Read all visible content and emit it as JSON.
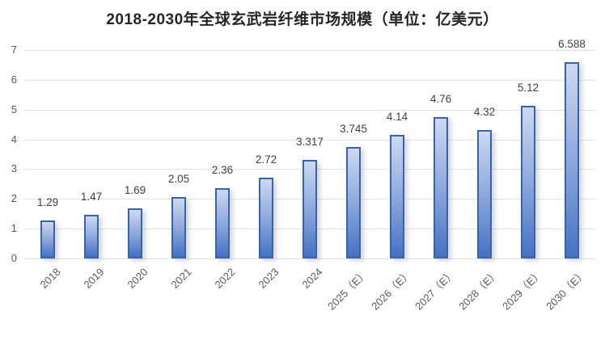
{
  "chart_data": {
    "type": "bar",
    "title": "2018-2030年全球玄武岩纤维市场规模（单位：亿美元）",
    "categories": [
      "2018",
      "2019",
      "2020",
      "2021",
      "2022",
      "2023",
      "2024",
      "2025（E）",
      "2026（E）",
      "2027（E）",
      "2028（E）",
      "2029（E）",
      "2030（E）"
    ],
    "values": [
      1.29,
      1.47,
      1.69,
      2.05,
      2.36,
      2.72,
      3.317,
      3.745,
      4.14,
      4.76,
      4.32,
      5.12,
      6.588
    ],
    "data_labels": [
      "1.29",
      "1.47",
      "1.69",
      "2.05",
      "2.36",
      "2.72",
      "3.317",
      "3.745",
      "4.14",
      "4.76",
      "4.32",
      "5.12",
      "6.588"
    ],
    "xlabel": "",
    "ylabel": "",
    "ylim": [
      0,
      7
    ],
    "yticks": [
      0,
      1,
      2,
      3,
      4,
      5,
      6,
      7
    ],
    "grid": true,
    "legend": false,
    "colors": {
      "title": "#262626",
      "bar_gradient_top": "#cdd9f1",
      "bar_gradient_mid": "#8aa7dc",
      "bar_gradient_bottom": "#4472c4",
      "bar_border": "#3a63ae",
      "gridline": "#e2e2e2",
      "axis_text": "#595959",
      "data_label": "#404040",
      "background": "#ffffff"
    }
  }
}
